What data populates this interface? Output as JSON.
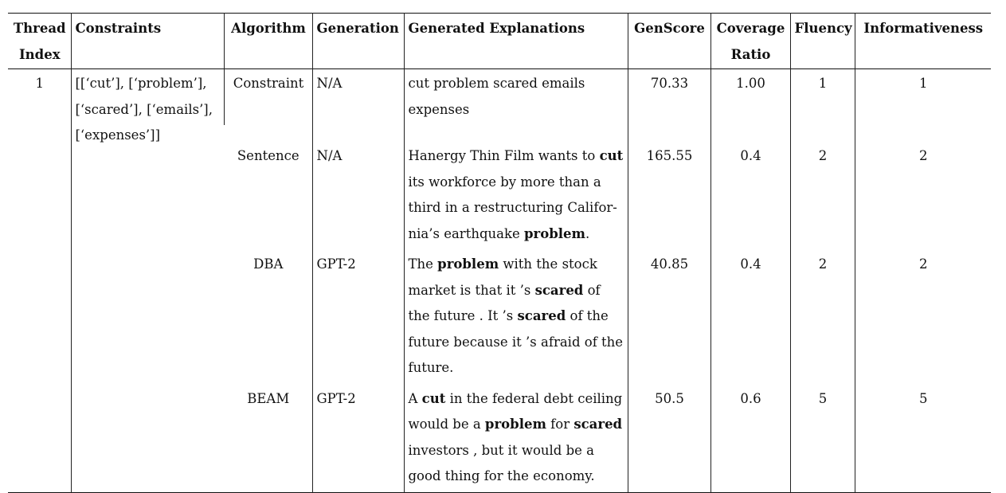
{
  "table": {
    "headers": [
      {
        "line1": "Thread",
        "line2": "Index"
      },
      {
        "line1": "Constraints",
        "line2": ""
      },
      {
        "line1": "Algorithm",
        "line2": ""
      },
      {
        "line1": "Generation",
        "line2": ""
      },
      {
        "line1": "Generated Explanations",
        "line2": ""
      },
      {
        "line1": "GenScore",
        "line2": ""
      },
      {
        "line1": "Coverage",
        "line2": "Ratio"
      },
      {
        "line1": "Fluency",
        "line2": ""
      },
      {
        "line1": "Informativeness",
        "line2": ""
      }
    ],
    "thread_index": "1",
    "constraints": "[[‘cut’], [‘problem’], [‘scared’], [‘emails’], [‘expenses’]]",
    "rows": [
      {
        "algorithm": "Constraint",
        "generation": "N/A",
        "explanation": [
          {
            "t": "cut problem scared emails expenses",
            "b": false
          }
        ],
        "genscore": "70.33",
        "coverage": "1.00",
        "fluency": "1",
        "informativeness": "1"
      },
      {
        "algorithm": "Sentence",
        "generation": "N/A",
        "explanation": [
          {
            "t": "Hanergy Thin Film wants to ",
            "b": false
          },
          {
            "t": "cut",
            "b": true
          },
          {
            "t": " its workforce by more than a third in a restructuring Califor-nia’s earthquake ",
            "b": false
          },
          {
            "t": "problem",
            "b": true
          },
          {
            "t": ".",
            "b": false
          }
        ],
        "genscore": "165.55",
        "coverage": "0.4",
        "fluency": "2",
        "informativeness": "2"
      },
      {
        "algorithm": "DBA",
        "generation": "GPT-2",
        "explanation": [
          {
            "t": "The ",
            "b": false
          },
          {
            "t": "problem",
            "b": true
          },
          {
            "t": " with the stock market is that it ’s ",
            "b": false
          },
          {
            "t": "scared",
            "b": true
          },
          {
            "t": " of the future . It ’s ",
            "b": false
          },
          {
            "t": "scared",
            "b": true
          },
          {
            "t": " of the future because it ’s afraid of the future.",
            "b": false
          }
        ],
        "genscore": "40.85",
        "coverage": "0.4",
        "fluency": "2",
        "informativeness": "2"
      },
      {
        "algorithm": "BEAM",
        "generation": "GPT-2",
        "explanation": [
          {
            "t": "A ",
            "b": false
          },
          {
            "t": "cut",
            "b": true
          },
          {
            "t": " in the federal debt ceiling would be a ",
            "b": false
          },
          {
            "t": "problem",
            "b": true
          },
          {
            "t": " for ",
            "b": false
          },
          {
            "t": "scared",
            "b": true
          },
          {
            "t": " investors , but it would be a good thing for the economy.",
            "b": false
          }
        ],
        "genscore": "50.5",
        "coverage": "0.6",
        "fluency": "5",
        "informativeness": "5"
      }
    ]
  }
}
